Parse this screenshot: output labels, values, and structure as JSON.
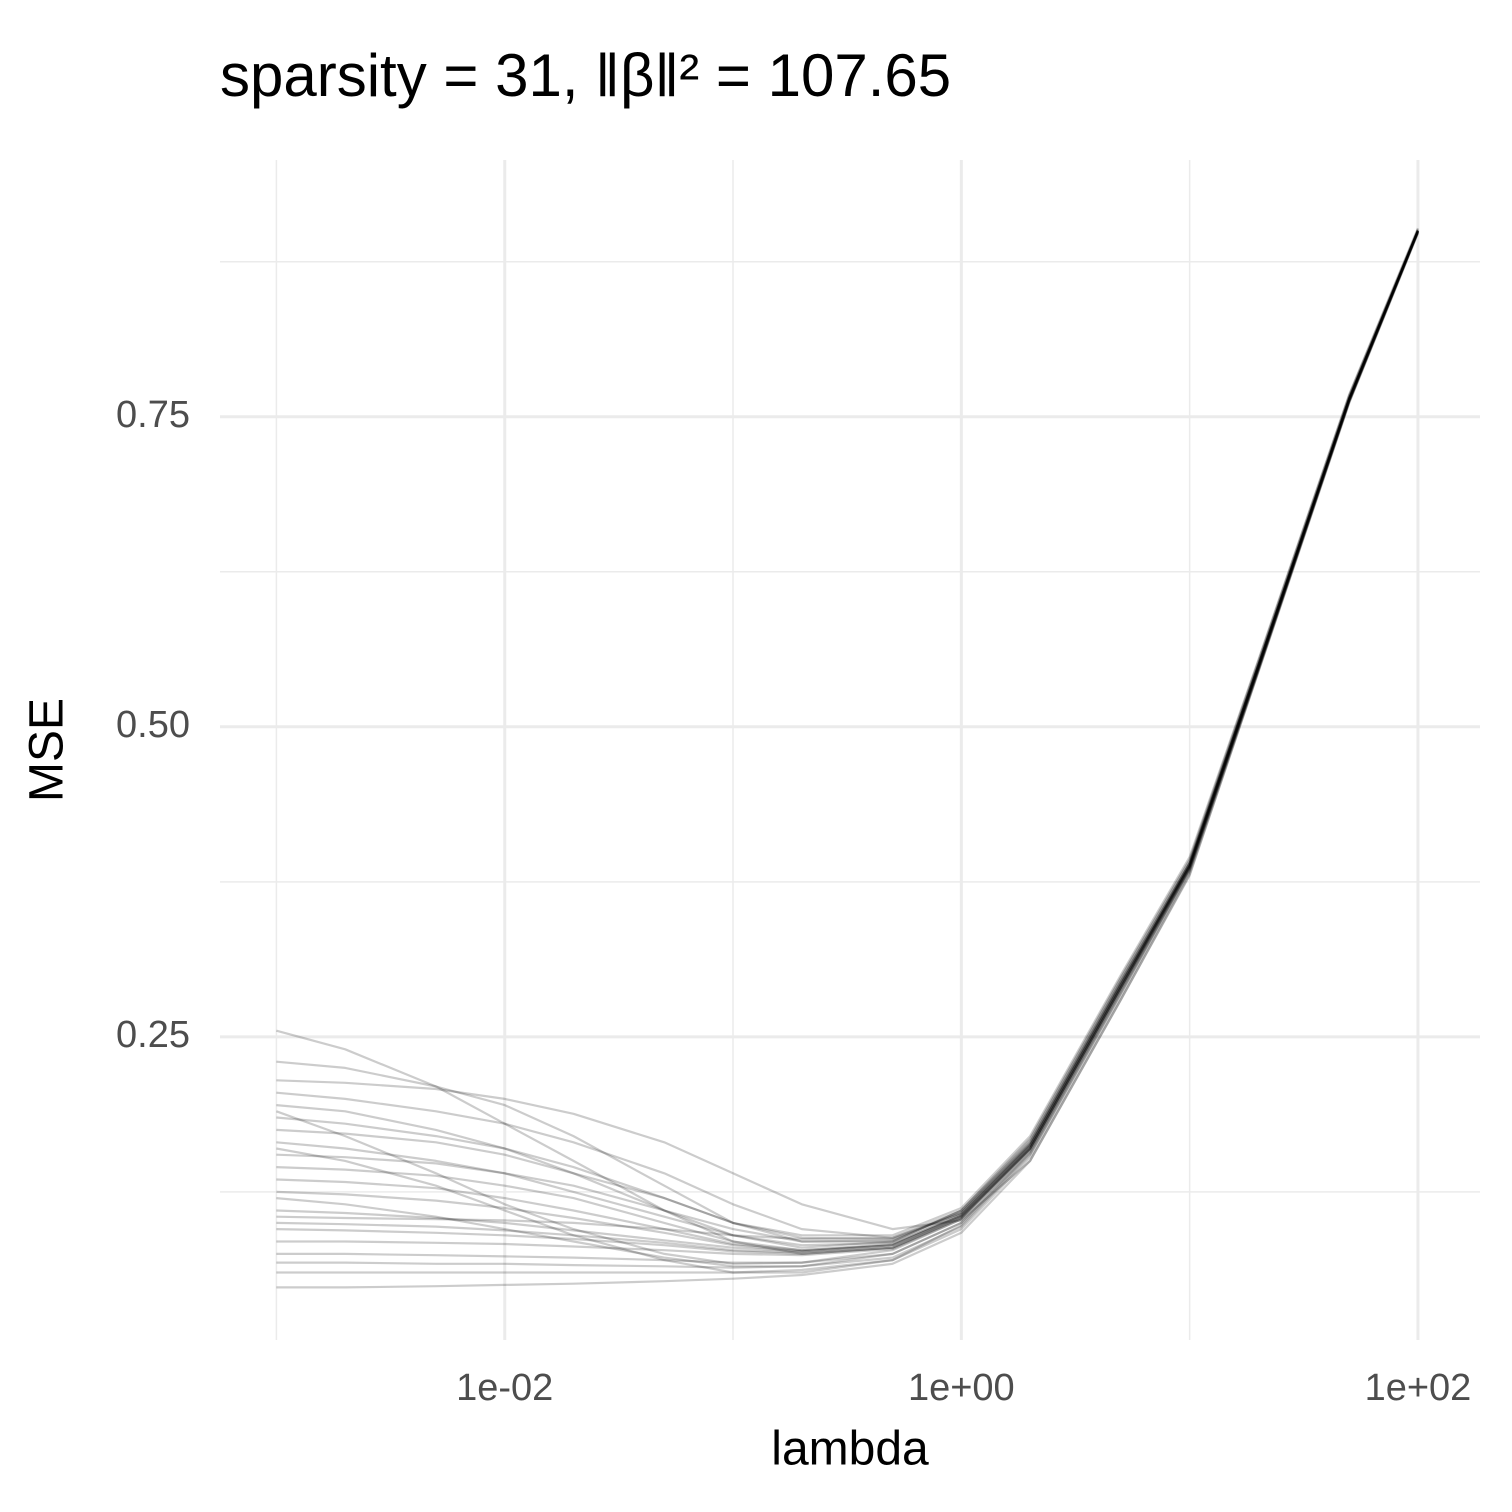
{
  "chart_data": {
    "type": "line",
    "title": "sparsity = 31, ‖β‖² = 107.65",
    "x_label": "lambda",
    "y_label": "MSE",
    "x_log": true,
    "grid": true,
    "line_color": "#000000",
    "line_opacity": 0.2,
    "xlim": [
      0.000566,
      187
    ],
    "xticks": [
      {
        "value": 0.01,
        "label": "1e-02"
      },
      {
        "value": 1,
        "label": "1e+00"
      },
      {
        "value": 100,
        "label": "1e+02"
      }
    ],
    "xminor": [
      0.001,
      0.1,
      10
    ],
    "ylim": [
      0.0056,
      0.957
    ],
    "yticks": [
      0.25,
      {
        "value": 0.5,
        "label": "0.50"
      },
      0.75
    ],
    "yminor": [
      0.125,
      0.375,
      0.625,
      0.875
    ],
    "x": [
      0.001,
      0.002,
      0.005,
      0.01,
      0.02,
      0.05,
      0.1,
      0.2,
      0.5,
      1,
      2,
      5,
      10,
      20,
      50,
      100
    ],
    "series": [
      {
        "values": [
          0.255,
          0.24,
          0.21,
          0.18,
          0.15,
          0.11,
          0.085,
          0.075,
          0.08,
          0.105,
          0.16,
          0.29,
          0.39,
          0.55,
          0.765,
          0.9
        ]
      },
      {
        "values": [
          0.23,
          0.225,
          0.21,
          0.195,
          0.17,
          0.13,
          0.1,
          0.085,
          0.085,
          0.11,
          0.165,
          0.295,
          0.39,
          0.55,
          0.765,
          0.9
        ]
      },
      {
        "values": [
          0.205,
          0.2,
          0.19,
          0.18,
          0.165,
          0.14,
          0.115,
          0.095,
          0.088,
          0.108,
          0.163,
          0.293,
          0.388,
          0.548,
          0.763,
          0.899
        ]
      },
      {
        "values": [
          0.195,
          0.19,
          0.175,
          0.16,
          0.14,
          0.11,
          0.09,
          0.08,
          0.085,
          0.11,
          0.167,
          0.297,
          0.392,
          0.552,
          0.767,
          0.901
        ]
      },
      {
        "values": [
          0.185,
          0.18,
          0.17,
          0.16,
          0.145,
          0.12,
          0.1,
          0.09,
          0.09,
          0.112,
          0.17,
          0.3,
          0.395,
          0.554,
          0.768,
          0.902
        ]
      },
      {
        "values": [
          0.175,
          0.172,
          0.165,
          0.155,
          0.14,
          0.12,
          0.1,
          0.088,
          0.087,
          0.108,
          0.164,
          0.294,
          0.39,
          0.55,
          0.765,
          0.9
        ]
      },
      {
        "values": [
          0.165,
          0.16,
          0.15,
          0.14,
          0.125,
          0.105,
          0.09,
          0.082,
          0.084,
          0.106,
          0.162,
          0.292,
          0.388,
          0.548,
          0.764,
          0.899
        ]
      },
      {
        "values": [
          0.155,
          0.153,
          0.148,
          0.14,
          0.13,
          0.11,
          0.095,
          0.085,
          0.086,
          0.108,
          0.165,
          0.295,
          0.39,
          0.55,
          0.765,
          0.9
        ]
      },
      {
        "values": [
          0.145,
          0.143,
          0.138,
          0.13,
          0.12,
          0.1,
          0.085,
          0.078,
          0.082,
          0.105,
          0.16,
          0.29,
          0.387,
          0.548,
          0.764,
          0.9
        ]
      },
      {
        "values": [
          0.135,
          0.133,
          0.128,
          0.12,
          0.11,
          0.095,
          0.083,
          0.078,
          0.083,
          0.107,
          0.163,
          0.293,
          0.389,
          0.55,
          0.765,
          0.9
        ]
      },
      {
        "values": [
          0.125,
          0.123,
          0.118,
          0.112,
          0.104,
          0.092,
          0.082,
          0.077,
          0.082,
          0.106,
          0.162,
          0.292,
          0.388,
          0.549,
          0.764,
          0.9
        ]
      },
      {
        "values": [
          0.12,
          0.115,
          0.105,
          0.095,
          0.085,
          0.072,
          0.065,
          0.065,
          0.075,
          0.1,
          0.158,
          0.288,
          0.386,
          0.547,
          0.763,
          0.899
        ]
      },
      {
        "values": [
          0.11,
          0.108,
          0.104,
          0.1,
          0.094,
          0.086,
          0.08,
          0.077,
          0.082,
          0.106,
          0.162,
          0.292,
          0.388,
          0.549,
          0.764,
          0.9
        ]
      },
      {
        "values": [
          0.1,
          0.099,
          0.097,
          0.094,
          0.09,
          0.084,
          0.078,
          0.076,
          0.08,
          0.104,
          0.16,
          0.29,
          0.387,
          0.548,
          0.764,
          0.9
        ]
      },
      {
        "values": [
          0.095,
          0.094,
          0.092,
          0.09,
          0.087,
          0.082,
          0.077,
          0.075,
          0.08,
          0.104,
          0.16,
          0.29,
          0.387,
          0.548,
          0.764,
          0.9
        ]
      },
      {
        "values": [
          0.085,
          0.085,
          0.084,
          0.083,
          0.081,
          0.078,
          0.075,
          0.074,
          0.079,
          0.103,
          0.159,
          0.289,
          0.386,
          0.547,
          0.763,
          0.899
        ]
      },
      {
        "values": [
          0.075,
          0.075,
          0.074,
          0.073,
          0.072,
          0.07,
          0.068,
          0.068,
          0.075,
          0.1,
          0.157,
          0.287,
          0.385,
          0.546,
          0.763,
          0.899
        ]
      },
      {
        "values": [
          0.068,
          0.068,
          0.067,
          0.067,
          0.066,
          0.065,
          0.064,
          0.065,
          0.072,
          0.097,
          0.155,
          0.285,
          0.384,
          0.546,
          0.762,
          0.899
        ]
      },
      {
        "values": [
          0.06,
          0.06,
          0.06,
          0.06,
          0.06,
          0.06,
          0.06,
          0.062,
          0.07,
          0.095,
          0.153,
          0.283,
          0.383,
          0.545,
          0.762,
          0.898
        ]
      },
      {
        "values": [
          0.048,
          0.048,
          0.049,
          0.05,
          0.051,
          0.053,
          0.055,
          0.058,
          0.067,
          0.092,
          0.15,
          0.28,
          0.381,
          0.544,
          0.761,
          0.898
        ]
      },
      {
        "values": [
          0.19,
          0.17,
          0.14,
          0.115,
          0.095,
          0.075,
          0.067,
          0.068,
          0.078,
          0.103,
          0.16,
          0.29,
          0.388,
          0.55,
          0.765,
          0.9
        ]
      },
      {
        "values": [
          0.215,
          0.213,
          0.208,
          0.2,
          0.188,
          0.165,
          0.14,
          0.115,
          0.095,
          0.102,
          0.15,
          0.28,
          0.38,
          0.545,
          0.762,
          0.899
        ]
      },
      {
        "values": [
          0.16,
          0.15,
          0.13,
          0.11,
          0.09,
          0.07,
          0.06,
          0.06,
          0.07,
          0.098,
          0.156,
          0.286,
          0.385,
          0.547,
          0.763,
          0.899
        ]
      },
      {
        "values": [
          0.105,
          0.104,
          0.103,
          0.102,
          0.1,
          0.095,
          0.09,
          0.087,
          0.088,
          0.11,
          0.168,
          0.298,
          0.393,
          0.553,
          0.767,
          0.901
        ]
      }
    ]
  }
}
